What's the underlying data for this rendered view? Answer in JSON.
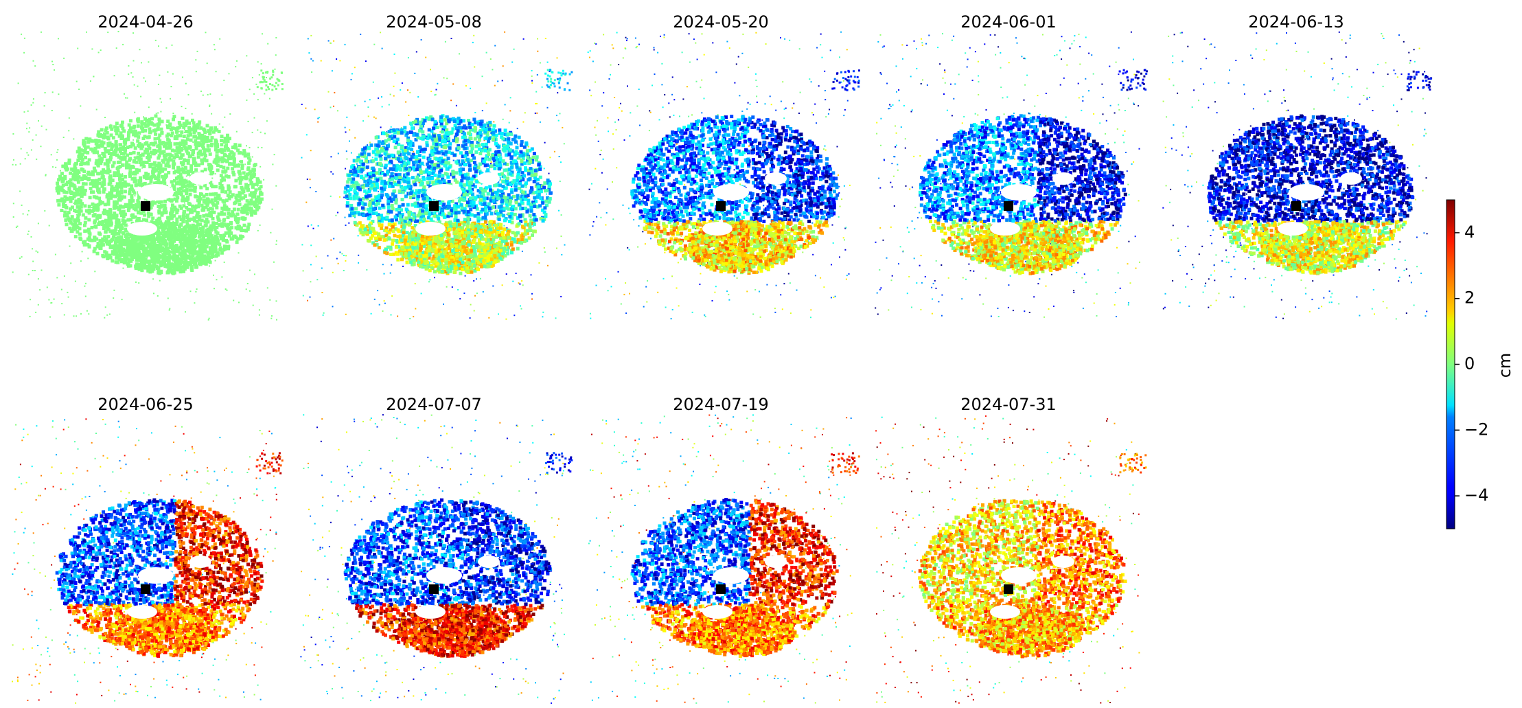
{
  "chart_data": {
    "type": "heatmap",
    "title": "",
    "colormap": "jet",
    "colorbar": {
      "label": "cm",
      "range": [
        -5,
        5
      ],
      "ticks": [
        4,
        2,
        0,
        -2,
        -4
      ],
      "tick_labels": [
        "4",
        "2",
        "0",
        "−2",
        "−4"
      ],
      "placement": "right"
    },
    "reference_marker": {
      "shape": "square",
      "color": "#000000"
    },
    "layout": {
      "rows": 2,
      "cols": 5
    },
    "panels": [
      {
        "title": "2024-04-26",
        "summary": {
          "nw_lobe_cm": 0.0,
          "ne_lobe_cm": 0.0,
          "south_lobe_cm": 0.0
        }
      },
      {
        "title": "2024-05-08",
        "summary": {
          "nw_lobe_cm": -1.5,
          "ne_lobe_cm": -1.5,
          "south_lobe_cm": 0.8
        }
      },
      {
        "title": "2024-05-20",
        "summary": {
          "nw_lobe_cm": -2.5,
          "ne_lobe_cm": -3.5,
          "south_lobe_cm": 1.5
        }
      },
      {
        "title": "2024-06-01",
        "summary": {
          "nw_lobe_cm": -2.5,
          "ne_lobe_cm": -4.0,
          "south_lobe_cm": 1.2
        }
      },
      {
        "title": "2024-06-13",
        "summary": {
          "nw_lobe_cm": -4.0,
          "ne_lobe_cm": -4.0,
          "south_lobe_cm": 1.0
        }
      },
      {
        "title": "2024-06-25",
        "summary": {
          "nw_lobe_cm": -3.0,
          "ne_lobe_cm": 3.5,
          "south_lobe_cm": 2.5
        }
      },
      {
        "title": "2024-07-07",
        "summary": {
          "nw_lobe_cm": -3.0,
          "ne_lobe_cm": -3.5,
          "south_lobe_cm": 3.5
        }
      },
      {
        "title": "2024-07-19",
        "summary": {
          "nw_lobe_cm": -3.0,
          "ne_lobe_cm": 3.5,
          "south_lobe_cm": 2.5
        }
      },
      {
        "title": "2024-07-31",
        "summary": {
          "nw_lobe_cm": 1.5,
          "ne_lobe_cm": 2.5,
          "south_lobe_cm": 2.0
        }
      }
    ]
  }
}
